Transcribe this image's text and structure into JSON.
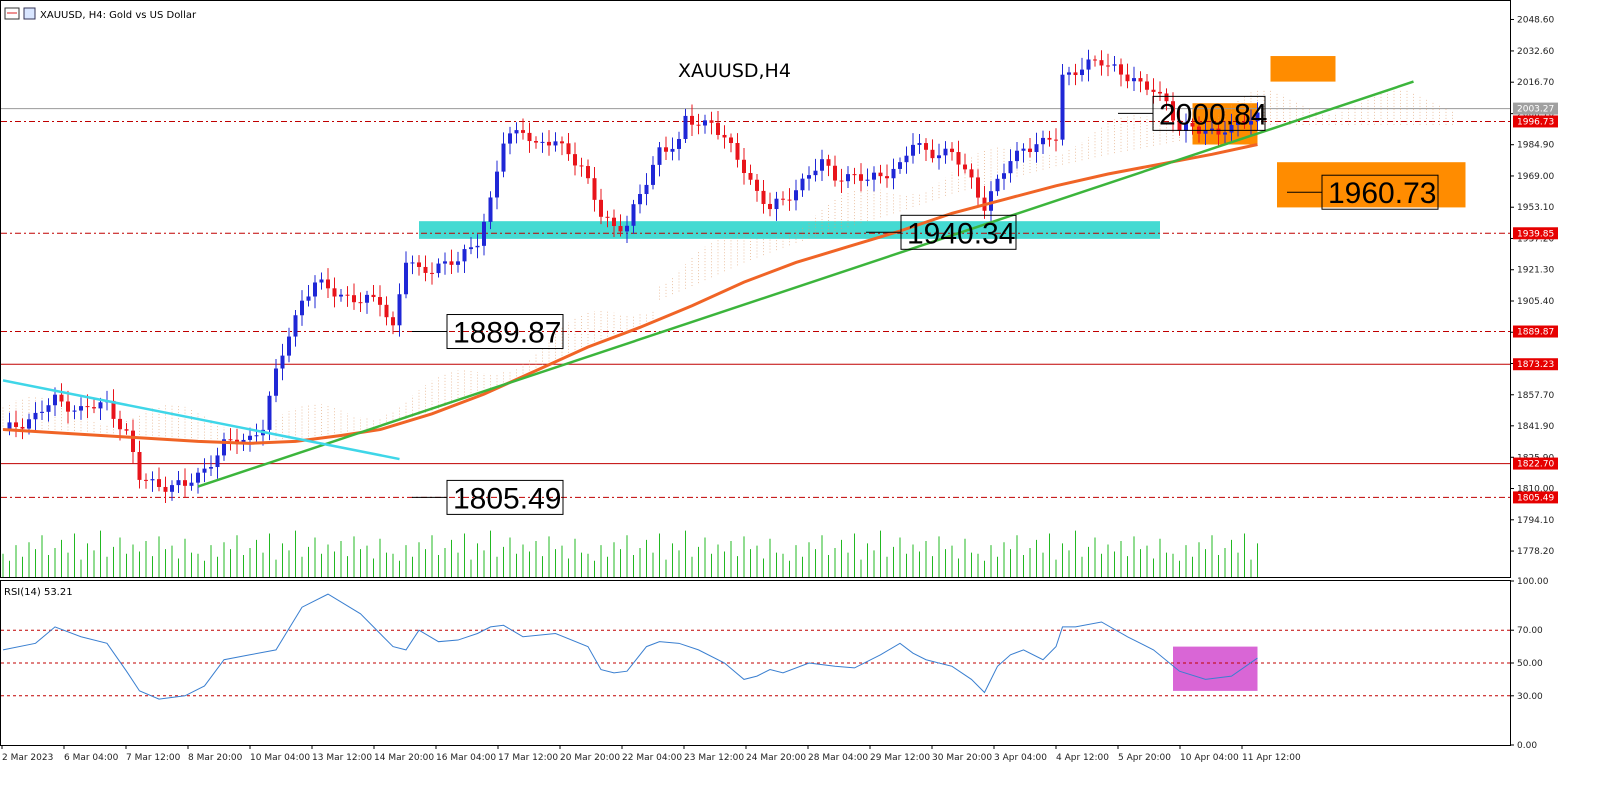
{
  "header": {
    "symbol_caption": "XAUUSD, H4:  Gold vs US Dollar",
    "chart_title": "XAUUSD,H4"
  },
  "rsi_panel": {
    "caption": "RSI(14) 53.21"
  },
  "colors": {
    "bull_candle": "#1f27d6",
    "bear_candle": "#e8141b",
    "moving_average": "#f06426",
    "trendline_up": "#3cb53c",
    "trendline_down": "#3fd6e8",
    "support_zone": "#3ad8d0",
    "target_zone": "#ff8c00",
    "rsi_line": "#3a7fd0",
    "rsi_highlight": "#d966d6",
    "volume": "#22b822",
    "level_line": "#c00000"
  },
  "chart_data": [
    {
      "type": "candlestick",
      "title": "XAUUSD,H4",
      "ylim": [
        1765,
        2058
      ],
      "y_ticks": [
        2048.6,
        2032.6,
        2016.7,
        2000.7,
        1984.9,
        1969.0,
        1953.1,
        1937.2,
        1921.3,
        1905.4,
        1889.5,
        1873.6,
        1857.7,
        1841.9,
        1825.9,
        1810.0,
        1794.1,
        1778.2
      ],
      "y_tick_labels": [
        "2048.60",
        "2032.60",
        "2016.70",
        "2000.70",
        "1984.90",
        "1969.00",
        "1953.10",
        "1937.20",
        "1921.30",
        "1905.40",
        "1889.50",
        "1873.60",
        "1857.70",
        "1841.90",
        "1825.90",
        "1810.00",
        "1794.10",
        "1778.20"
      ],
      "x_tick_labels": [
        "2 Mar 2023",
        "6 Mar 04:00",
        "7 Mar 12:00",
        "8 Mar 20:00",
        "10 Mar 04:00",
        "13 Mar 12:00",
        "14 Mar 20:00",
        "16 Mar 04:00",
        "17 Mar 12:00",
        "20 Mar 20:00",
        "22 Mar 04:00",
        "23 Mar 12:00",
        "24 Mar 20:00",
        "28 Mar 04:00",
        "29 Mar 12:00",
        "30 Mar 20:00",
        "3 Apr 04:00",
        "4 Apr 12:00",
        "5 Apr 20:00",
        "10 Apr 04:00",
        "11 Apr 12:00"
      ],
      "close_path": [
        [
          0,
          1839
        ],
        [
          5,
          1847
        ],
        [
          8,
          1855
        ],
        [
          12,
          1850
        ],
        [
          16,
          1853
        ],
        [
          19,
          1838
        ],
        [
          21,
          1815
        ],
        [
          24,
          1812
        ],
        [
          28,
          1811
        ],
        [
          31,
          1820
        ],
        [
          34,
          1832
        ],
        [
          38,
          1836
        ],
        [
          40,
          1842
        ],
        [
          42,
          1868
        ],
        [
          44,
          1889
        ],
        [
          46,
          1906
        ],
        [
          48,
          1914
        ],
        [
          52,
          1909
        ],
        [
          55,
          1905
        ],
        [
          58,
          1906
        ],
        [
          60,
          1892
        ],
        [
          62,
          1926
        ],
        [
          64,
          1920
        ],
        [
          67,
          1924
        ],
        [
          70,
          1925
        ],
        [
          73,
          1937
        ],
        [
          75,
          1956
        ],
        [
          77,
          1986
        ],
        [
          80,
          1994
        ],
        [
          82,
          1984
        ],
        [
          85,
          1986
        ],
        [
          87,
          1982
        ],
        [
          89,
          1973
        ],
        [
          92,
          1949
        ],
        [
          94,
          1944
        ],
        [
          96,
          1944
        ],
        [
          99,
          1966
        ],
        [
          101,
          1983
        ],
        [
          104,
          1985
        ],
        [
          105,
          1997
        ],
        [
          107,
          1996
        ],
        [
          109,
          1997
        ],
        [
          111,
          1987
        ],
        [
          114,
          1973
        ],
        [
          116,
          1961
        ],
        [
          118,
          1952
        ],
        [
          120,
          1956
        ],
        [
          122,
          1963
        ],
        [
          124,
          1970
        ],
        [
          126,
          1975
        ],
        [
          128,
          1969
        ],
        [
          131,
          1969
        ],
        [
          133,
          1966
        ],
        [
          135,
          1970
        ],
        [
          138,
          1974
        ],
        [
          140,
          1985
        ],
        [
          142,
          1982
        ],
        [
          144,
          1981
        ],
        [
          146,
          1980
        ],
        [
          149,
          1967
        ],
        [
          151,
          1954
        ],
        [
          153,
          1965
        ],
        [
          155,
          1977
        ],
        [
          157,
          1984
        ],
        [
          160,
          1985
        ],
        [
          162,
          1989
        ],
        [
          163,
          2020
        ],
        [
          165,
          2023
        ],
        [
          167,
          2025
        ],
        [
          169,
          2027
        ],
        [
          171,
          2025
        ],
        [
          173,
          2019
        ],
        [
          175,
          2014
        ],
        [
          177,
          2014
        ],
        [
          179,
          2007
        ],
        [
          181,
          1991
        ],
        [
          183,
          1994
        ],
        [
          185,
          1993
        ],
        [
          187,
          1991
        ],
        [
          189,
          1992
        ],
        [
          191,
          1998
        ],
        [
          193,
          2000
        ]
      ],
      "candle_count": 194,
      "volume_ylim": [
        0,
        100
      ],
      "volume_series": [
        40,
        28,
        55,
        35,
        60,
        48,
        72,
        38,
        50,
        64,
        42,
        75,
        30,
        58,
        46,
        80,
        35,
        52,
        68,
        40,
        56,
        44,
        62,
        36,
        70,
        48,
        54,
        32,
        66,
        42
      ],
      "ma_series": [
        [
          0,
          1840
        ],
        [
          10,
          1838
        ],
        [
          20,
          1836
        ],
        [
          30,
          1834
        ],
        [
          38,
          1833
        ],
        [
          45,
          1834
        ],
        [
          52,
          1837
        ],
        [
          58,
          1840
        ],
        [
          66,
          1848
        ],
        [
          74,
          1858
        ],
        [
          82,
          1870
        ],
        [
          90,
          1882
        ],
        [
          98,
          1892
        ],
        [
          106,
          1903
        ],
        [
          114,
          1915
        ],
        [
          122,
          1925
        ],
        [
          130,
          1933
        ],
        [
          138,
          1941
        ],
        [
          146,
          1950
        ],
        [
          154,
          1957
        ],
        [
          162,
          1964
        ],
        [
          170,
          1970
        ],
        [
          178,
          1975
        ],
        [
          186,
          1980
        ],
        [
          193,
          1985
        ]
      ],
      "trendline_up": [
        [
          30,
          1811
        ],
        [
          217,
          2017
        ]
      ],
      "trendline_down": [
        [
          0,
          1865
        ],
        [
          61,
          1825
        ]
      ],
      "horizontal_levels": [
        {
          "value": 1996.73,
          "label": "1996.73",
          "style": "dashdot"
        },
        {
          "value": 1939.85,
          "label": "1939.85",
          "style": "dashdot"
        },
        {
          "value": 1889.87,
          "label": "1889.87",
          "style": "dashdot"
        },
        {
          "value": 1873.23,
          "label": "1873.23",
          "style": "solid"
        },
        {
          "value": 1822.7,
          "label": "1822.70",
          "style": "solid"
        },
        {
          "value": 1805.49,
          "label": "1805.49",
          "style": "dashdot"
        }
      ],
      "current_price": {
        "value": 2003.27,
        "label": "2003.27"
      },
      "annotations": [
        {
          "label": "2000.84",
          "value": 2000.84
        },
        {
          "label": "1940.34",
          "value": 1940.34
        },
        {
          "label": "1889.87",
          "value": 1889.87
        },
        {
          "label": "1805.49",
          "value": 1805.49
        },
        {
          "label": "1960.73",
          "value": 1960.73
        }
      ],
      "zones": [
        {
          "name": "support",
          "y_range": [
            1937,
            1946
          ],
          "x_range": [
            64,
            178
          ]
        },
        {
          "name": "target-top",
          "y_range": [
            2017,
            2030
          ],
          "x_range": [
            195,
            205
          ]
        },
        {
          "name": "current",
          "y_range": [
            1985,
            2006
          ],
          "x_range": [
            183,
            193
          ]
        },
        {
          "name": "target-bottom",
          "y_range": [
            1953,
            1976
          ],
          "x_range": [
            196,
            225
          ]
        }
      ]
    },
    {
      "type": "line",
      "title": "RSI(14) 53.21",
      "ylim": [
        0,
        100
      ],
      "y_ticks": [
        100,
        70,
        50,
        30,
        0
      ],
      "y_tick_labels": [
        "100.00",
        "70.00",
        "50.00",
        "30.00",
        "0.00"
      ],
      "levels": [
        70,
        50,
        30
      ],
      "highlight": {
        "x_range": [
          180,
          193
        ],
        "y_range": [
          33,
          60
        ]
      },
      "x": [
        0,
        5,
        8,
        12,
        16,
        19,
        21,
        24,
        28,
        31,
        34,
        38,
        42,
        46,
        50,
        55,
        60,
        62,
        64,
        67,
        70,
        73,
        75,
        77,
        80,
        85,
        90,
        92,
        94,
        96,
        99,
        101,
        104,
        107,
        111,
        114,
        116,
        118,
        120,
        124,
        128,
        131,
        135,
        138,
        140,
        142,
        146,
        149,
        151,
        153,
        155,
        157,
        160,
        162,
        163,
        165,
        169,
        173,
        177,
        181,
        185,
        189,
        193
      ],
      "values": [
        58,
        62,
        72,
        66,
        62,
        45,
        33,
        28,
        30,
        36,
        52,
        55,
        58,
        84,
        92,
        80,
        60,
        58,
        70,
        63,
        64,
        68,
        72,
        73,
        66,
        68,
        60,
        46,
        44,
        45,
        60,
        63,
        62,
        58,
        50,
        40,
        42,
        46,
        44,
        50,
        48,
        47,
        55,
        62,
        56,
        52,
        48,
        40,
        32,
        48,
        55,
        58,
        52,
        60,
        72,
        72,
        75,
        66,
        58,
        45,
        40,
        42,
        53
      ]
    }
  ]
}
